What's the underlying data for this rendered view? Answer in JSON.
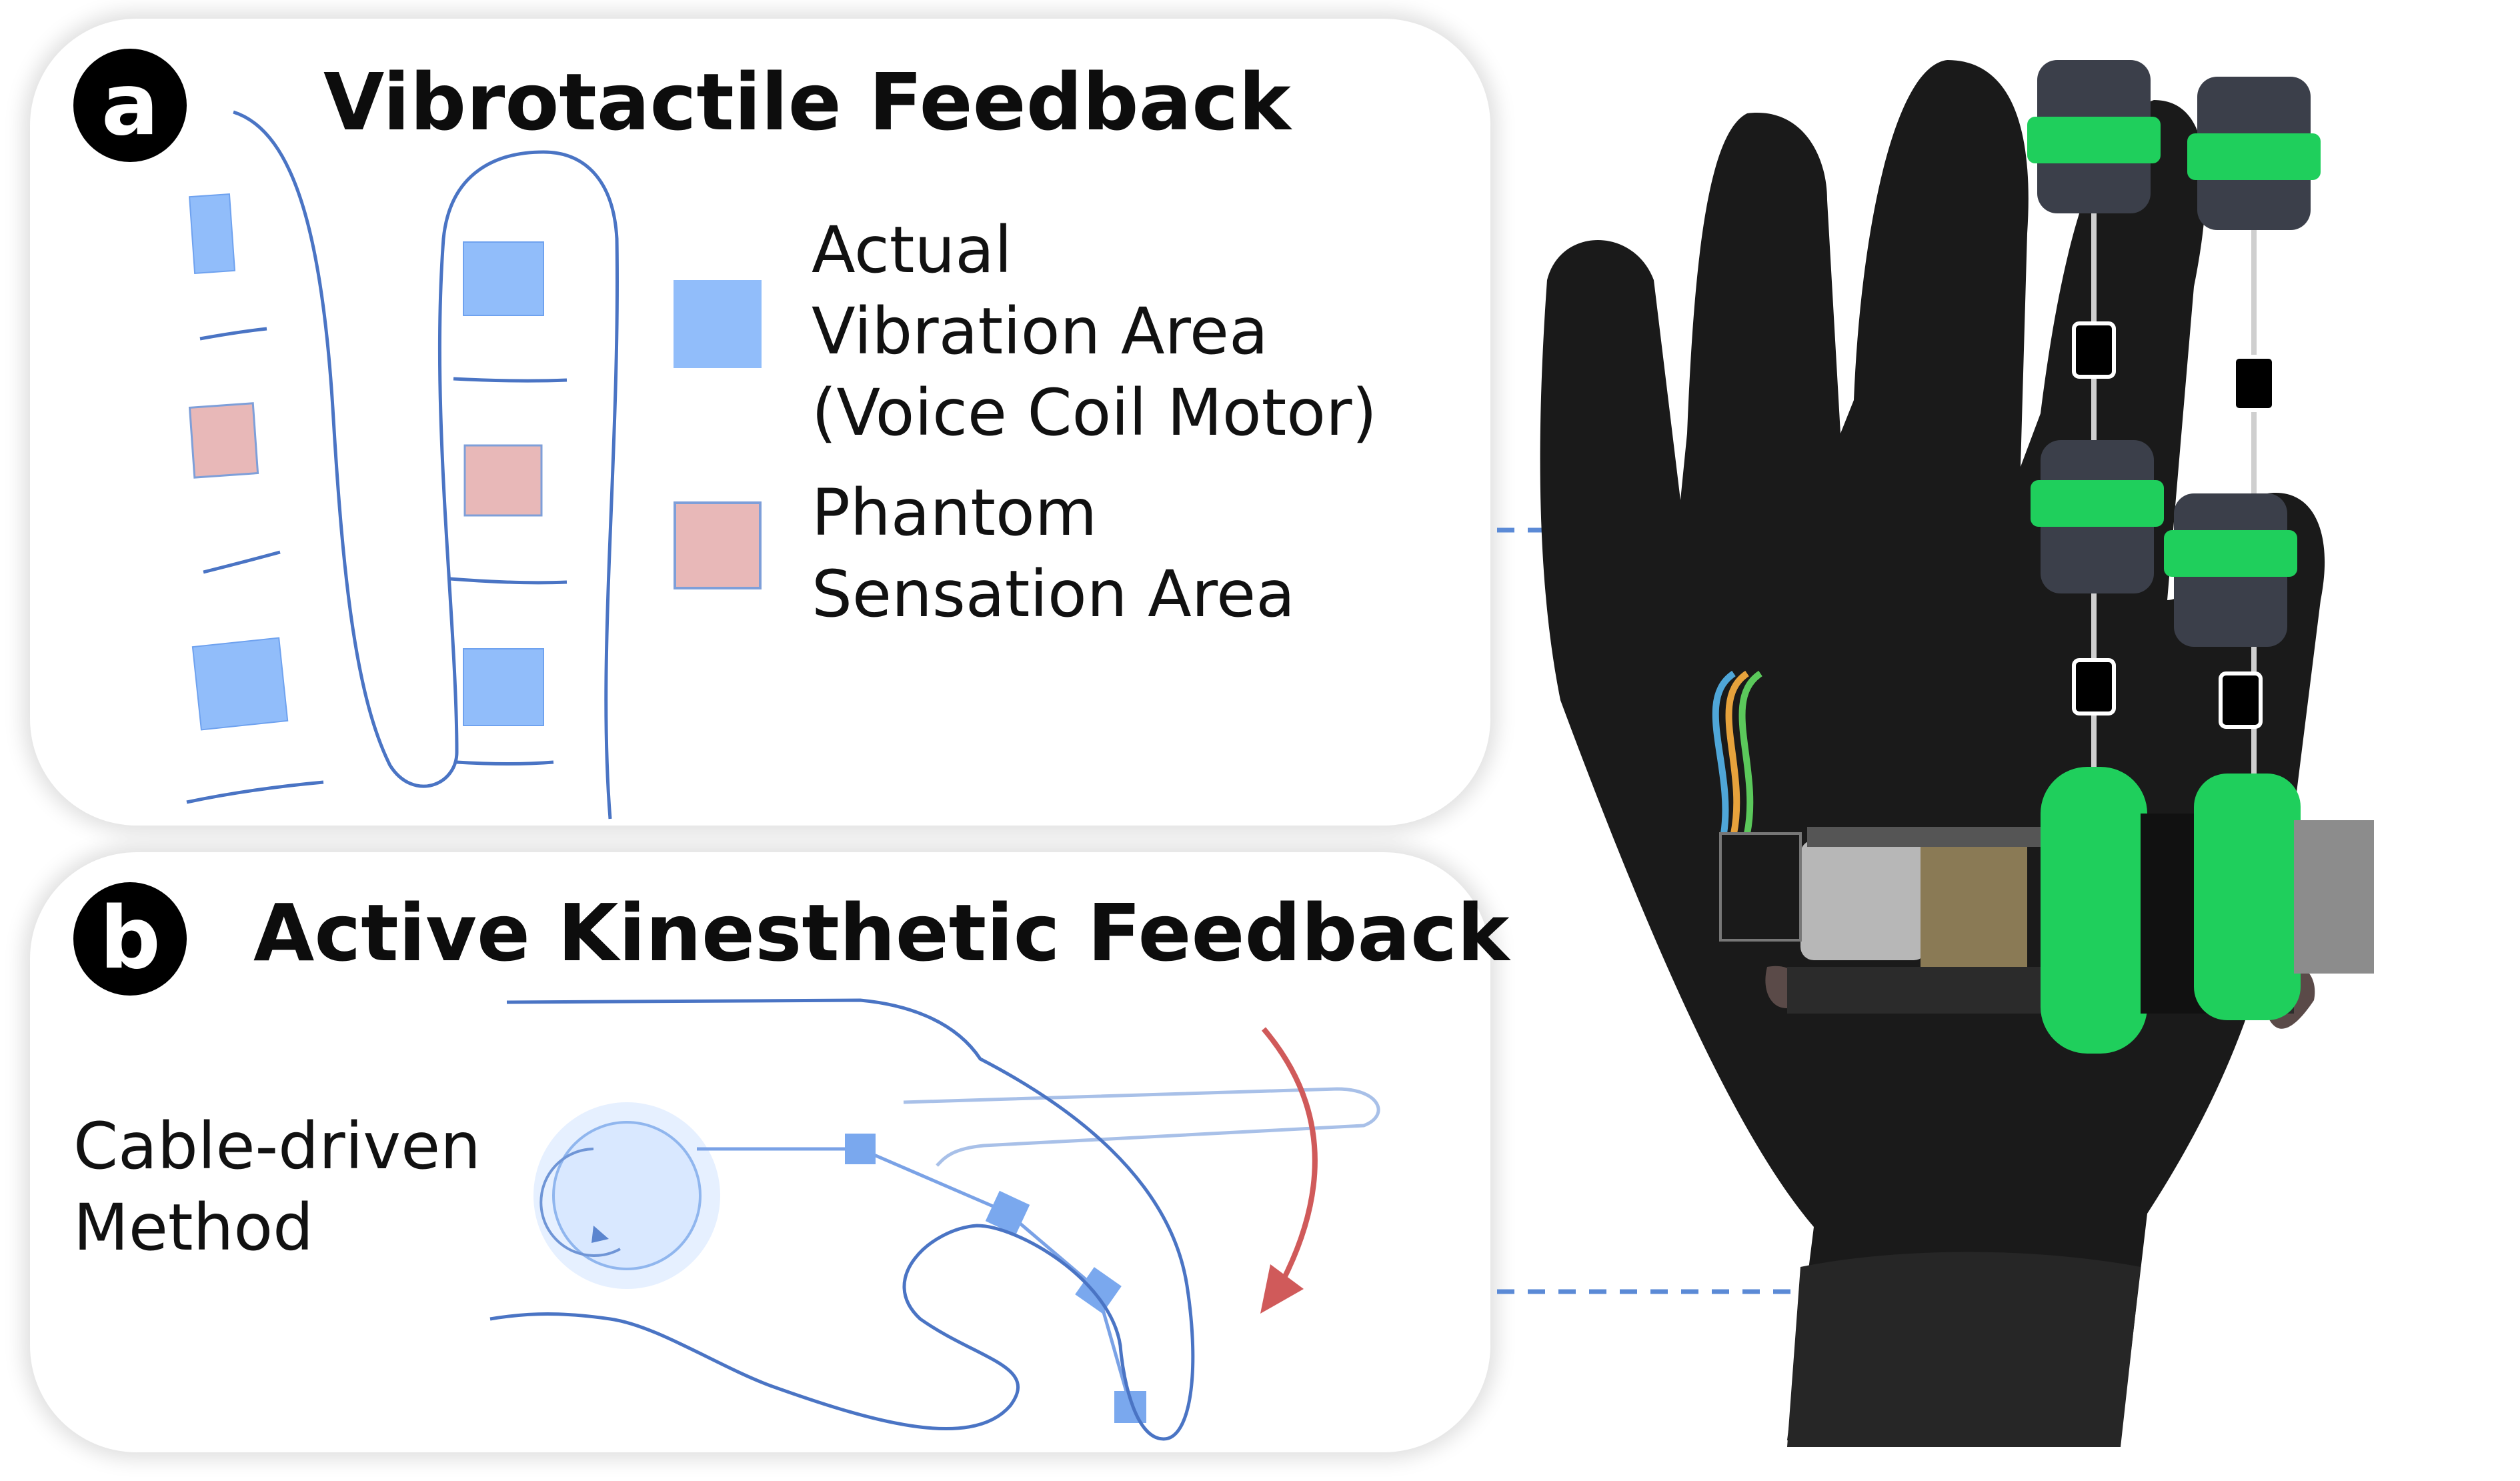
{
  "panel_a": {
    "badge": "a",
    "title": "Vibrotactile Feedback",
    "legend": {
      "actual": {
        "line1": "Actual",
        "line2": "Vibration Area",
        "line3": "(Voice Coil Motor)"
      },
      "phantom": {
        "line1": "Phantom",
        "line2": "Sensation Area"
      }
    }
  },
  "panel_b": {
    "badge": "b",
    "title": "Active Kinesthetic Feedback",
    "label": {
      "line1": "Cable-driven",
      "line2": "Method"
    }
  },
  "colors": {
    "actual_vibration": "#91bdfa",
    "phantom_sensation": "#e8b8b8",
    "outline": "#4a74c4",
    "arrow": "#d05a5a",
    "leader": "#5b8ad6",
    "glove": "#1a1a1a",
    "actuator": "#1fcf5c"
  }
}
